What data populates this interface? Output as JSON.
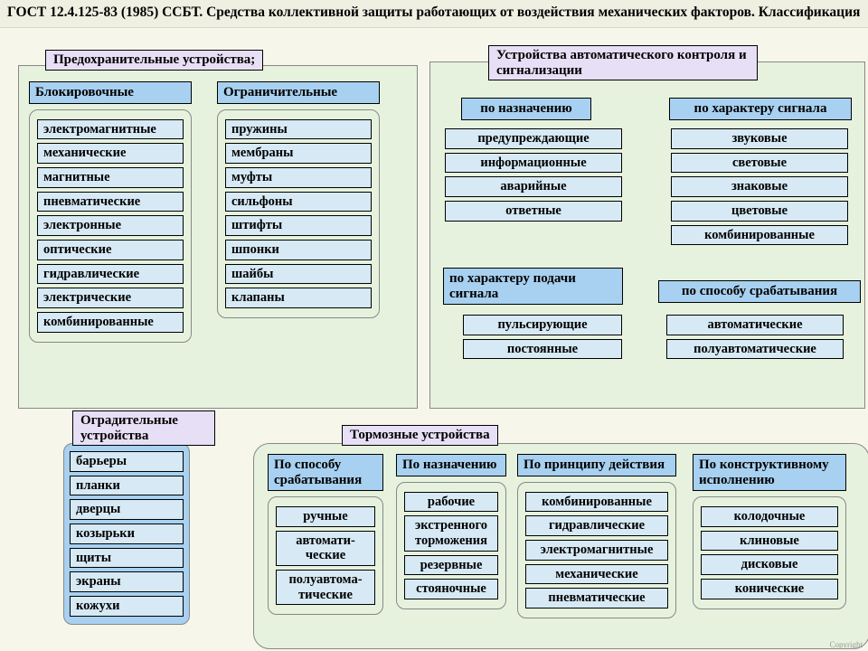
{
  "colors": {
    "page_bg": "#f6f6eb",
    "header_bg": "#efefe2",
    "lilac_title_bg": "#e7dff5",
    "blue_subhead_bg": "#a8d0f0",
    "blue_item_bg": "#a8d0f0",
    "pale_blue_bg": "#d6e9f5",
    "green_body_bg": "#e6f2dd",
    "border": "#000000",
    "panel_border": "#808080"
  },
  "header": "ГОСТ 12.4.125-83 (1985) ССБТ. Средства коллективной защиты работающих от воздействия механических факторов. Классификация",
  "safety": {
    "title": "Предохранительные устройства;",
    "lock": {
      "heading": "Блокировочные",
      "items": [
        "электромагнитные",
        "механические",
        "магнитные",
        "пневматические",
        "электронные",
        "оптические",
        "гидравлические",
        "электрические",
        "комбинированные"
      ]
    },
    "limit": {
      "heading": "Ограничительные",
      "items": [
        "пружины",
        "мембраны",
        "муфты",
        "сильфоны",
        "штифты",
        "шпонки",
        "шайбы",
        "клапаны"
      ]
    }
  },
  "control": {
    "title": "Устройства автоматического контроля и сигнализации",
    "purpose": {
      "heading": "по назначению",
      "items": [
        "предупреждающие",
        "информационные",
        "аварийные",
        "ответные"
      ]
    },
    "signal_char": {
      "heading": "по характеру сигнала",
      "items": [
        "звуковые",
        "световые",
        "знаковые",
        "цветовые",
        "комбинированные"
      ]
    },
    "signal_feed": {
      "heading": "по характеру подачи сигнала",
      "items": [
        "пульсирующие",
        "постоянные"
      ]
    },
    "operation": {
      "heading": "по способу срабатывания",
      "items": [
        "автоматические",
        "полуавтоматические"
      ]
    }
  },
  "guard": {
    "title": "Оградительные устройства",
    "items": [
      "барьеры",
      "планки",
      "дверцы",
      "козырьки",
      "щиты",
      "экраны",
      "кожухи"
    ]
  },
  "brake": {
    "title": "Тормозные устройства",
    "by_operation": {
      "heading": "По способу срабатывания",
      "items": [
        "ручные",
        "автомати-\nческие",
        "полуавтома-\nтические"
      ]
    },
    "by_purpose": {
      "heading": "По\nназначению",
      "items": [
        "рабочие",
        "экстренного торможения",
        "резервные",
        "стояночные"
      ]
    },
    "by_principle": {
      "heading": "По принципу действия",
      "items": [
        "комбинированные",
        "гидравлические",
        "электромагнитные",
        "механические",
        "пневматические"
      ]
    },
    "by_design": {
      "heading": "По конструктивному исполнению",
      "items": [
        "колодочные",
        "клиновые",
        "дисковые",
        "конические"
      ]
    }
  },
  "copyright": "Copyright"
}
